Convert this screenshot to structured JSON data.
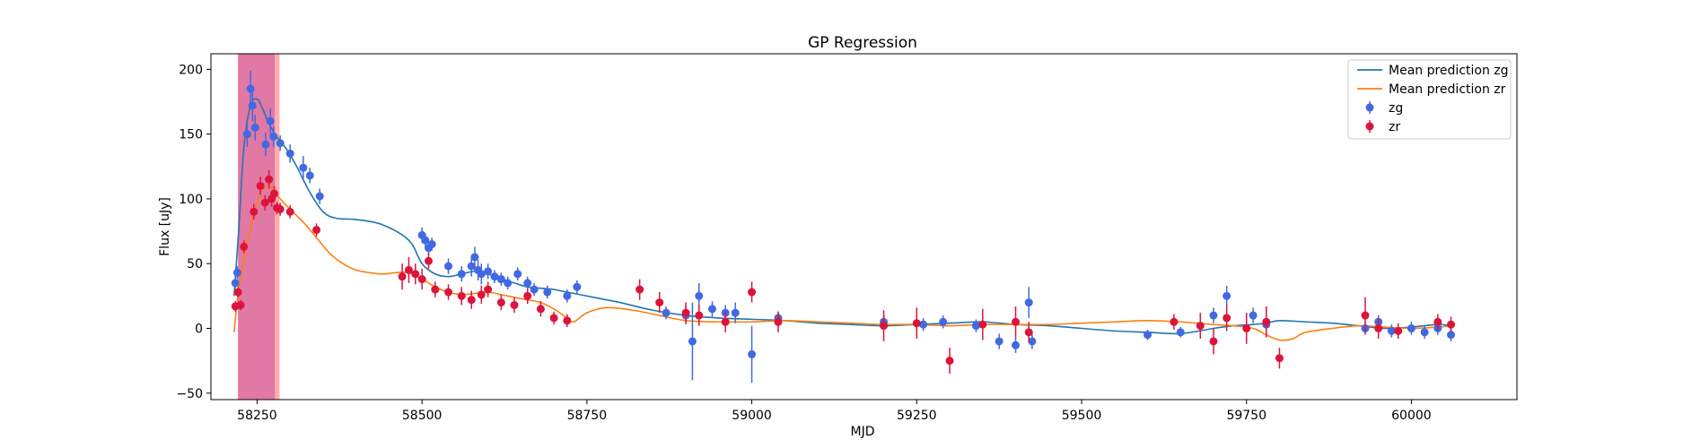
{
  "chart_data": {
    "type": "scatter",
    "title": "GP Regression",
    "xlabel": "MJD",
    "ylabel": "Flux [uJy]",
    "xlim": [
      58180,
      60160
    ],
    "ylim": [
      -55,
      212
    ],
    "xticks": [
      58250,
      58500,
      58750,
      59000,
      59250,
      59500,
      59750,
      60000
    ],
    "yticks": [
      -50,
      0,
      50,
      100,
      150,
      200
    ],
    "legend_position": "top-right",
    "shaded_regions": [
      {
        "x": [
          58221,
          58277
        ],
        "color": "#d63f7d",
        "opacity": 0.7
      },
      {
        "x": [
          58277,
          58284
        ],
        "color": "#ff8a8a",
        "opacity": 0.7
      }
    ],
    "series": [
      {
        "name": "Mean prediction zg",
        "kind": "line",
        "color": "#1f77b4",
        "x": [
          58215,
          58222,
          58230,
          58240,
          58250,
          58258,
          58268,
          58280,
          58295,
          58310,
          58330,
          58350,
          58370,
          58400,
          58440,
          58480,
          58500,
          58520,
          58540,
          58560,
          58580,
          58600,
          58620,
          58640,
          58660,
          58680,
          58700,
          58720,
          58740,
          58760,
          58780,
          58800,
          58850,
          58900,
          58950,
          59000,
          59050,
          59100,
          59150,
          59200,
          59250,
          59300,
          59350,
          59400,
          59450,
          59500,
          59550,
          59600,
          59650,
          59700,
          59730,
          59760,
          59780,
          59800,
          59840,
          59880,
          59920,
          59960,
          60000,
          60040,
          60060
        ],
        "y": [
          25,
          75,
          140,
          172,
          177,
          170,
          158,
          148,
          138,
          125,
          105,
          90,
          85,
          84,
          80,
          68,
          50,
          42,
          40,
          42,
          44,
          42,
          38,
          35,
          32,
          31,
          30,
          28,
          26,
          24,
          22,
          20,
          14,
          10,
          8,
          7,
          6,
          4,
          3,
          2,
          3,
          4,
          5,
          3,
          2,
          0,
          -2,
          -3,
          -4,
          0,
          2,
          3,
          4,
          6,
          5,
          4,
          2,
          0,
          1,
          3,
          2
        ]
      },
      {
        "name": "Mean prediction zr",
        "kind": "line",
        "color": "#ff7f0e",
        "x": [
          58215,
          58222,
          58232,
          58242,
          58252,
          58262,
          58272,
          58285,
          58300,
          58320,
          58340,
          58360,
          58380,
          58400,
          58420,
          58440,
          58460,
          58480,
          58500,
          58520,
          58540,
          58560,
          58580,
          58600,
          58620,
          58640,
          58660,
          58680,
          58700,
          58720,
          58730,
          58750,
          58780,
          58820,
          58860,
          58900,
          58950,
          59000,
          59050,
          59100,
          59150,
          59200,
          59250,
          59300,
          59350,
          59400,
          59450,
          59500,
          59550,
          59600,
          59650,
          59700,
          59730,
          59760,
          59780,
          59800,
          59820,
          59840,
          59880,
          59920,
          59960,
          60000,
          60040,
          60060
        ],
        "y": [
          -3,
          30,
          58,
          82,
          100,
          110,
          108,
          100,
          92,
          82,
          70,
          58,
          50,
          45,
          43,
          42,
          43,
          43,
          38,
          32,
          28,
          26,
          27,
          28,
          26,
          24,
          22,
          20,
          15,
          8,
          5,
          12,
          16,
          14,
          10,
          6,
          5,
          5,
          6,
          5,
          4,
          3,
          3,
          2,
          3,
          3,
          3,
          4,
          5,
          6,
          5,
          3,
          2,
          0,
          -5,
          -9,
          -8,
          -3,
          0,
          2,
          1,
          0,
          1,
          2
        ]
      },
      {
        "name": "zg",
        "kind": "errorbar",
        "color": "#4169e1",
        "x": [
          58217,
          58220,
          58235,
          58240,
          58243,
          58247,
          58263,
          58270,
          58275,
          58285,
          58300,
          58320,
          58330,
          58345,
          58500,
          58505,
          58510,
          58515,
          58540,
          58560,
          58575,
          58580,
          58585,
          58590,
          58600,
          58610,
          58620,
          58630,
          58645,
          58660,
          58670,
          58690,
          58720,
          58735,
          58870,
          58900,
          58910,
          58920,
          58940,
          58960,
          58975,
          59000,
          59040,
          59200,
          59260,
          59290,
          59340,
          59375,
          59400,
          59420,
          59425,
          59600,
          59650,
          59700,
          59720,
          59760,
          59780,
          59930,
          59950,
          59970,
          60000,
          60020,
          60040,
          60060
        ],
        "y": [
          35,
          43,
          150,
          185,
          172,
          155,
          142,
          160,
          148,
          143,
          135,
          124,
          118,
          102,
          72,
          68,
          62,
          65,
          48,
          42,
          48,
          55,
          45,
          42,
          44,
          40,
          38,
          35,
          42,
          35,
          30,
          28,
          25,
          32,
          12,
          10,
          -10,
          25,
          15,
          12,
          12,
          -20,
          8,
          5,
          3,
          5,
          2,
          -10,
          -13,
          20,
          -10,
          -5,
          -3,
          10,
          25,
          10,
          3,
          0,
          5,
          -2,
          0,
          -3,
          0,
          -5
        ],
        "err": [
          4,
          5,
          10,
          14,
          12,
          10,
          9,
          10,
          8,
          6,
          7,
          9,
          6,
          6,
          6,
          5,
          5,
          5,
          6,
          6,
          8,
          8,
          8,
          8,
          6,
          5,
          5,
          5,
          5,
          5,
          5,
          5,
          5,
          5,
          5,
          7,
          30,
          10,
          6,
          6,
          8,
          22,
          5,
          5,
          5,
          5,
          5,
          6,
          6,
          12,
          6,
          4,
          4,
          6,
          8,
          6,
          5,
          5,
          5,
          5,
          5,
          5,
          5,
          5
        ]
      },
      {
        "name": "zr",
        "kind": "errorbar",
        "color": "#dc143c",
        "x": [
          58217,
          58221,
          58225,
          58230,
          58245,
          58255,
          58262,
          58268,
          58272,
          58276,
          58280,
          58285,
          58300,
          58340,
          58470,
          58480,
          58490,
          58500,
          58510,
          58520,
          58540,
          58560,
          58575,
          58590,
          58600,
          58620,
          58640,
          58660,
          58680,
          58700,
          58720,
          58830,
          58860,
          58900,
          58920,
          58960,
          59000,
          59040,
          59200,
          59250,
          59300,
          59350,
          59400,
          59420,
          59640,
          59680,
          59700,
          59720,
          59750,
          59780,
          59800,
          59930,
          59950,
          59980,
          60040,
          60060
        ],
        "y": [
          17,
          28,
          18,
          63,
          90,
          110,
          97,
          115,
          100,
          104,
          93,
          92,
          90,
          76,
          40,
          45,
          42,
          38,
          52,
          30,
          28,
          25,
          22,
          26,
          30,
          20,
          18,
          25,
          15,
          8,
          6,
          30,
          20,
          12,
          10,
          5,
          28,
          5,
          2,
          4,
          -25,
          3,
          5,
          -3,
          5,
          2,
          -10,
          8,
          0,
          5,
          -23,
          10,
          0,
          -2,
          5,
          3
        ],
        "err": [
          4,
          4,
          4,
          5,
          6,
          7,
          6,
          7,
          6,
          6,
          5,
          5,
          5,
          5,
          10,
          10,
          8,
          8,
          6,
          6,
          6,
          7,
          7,
          7,
          6,
          6,
          6,
          6,
          6,
          5,
          5,
          8,
          8,
          8,
          8,
          8,
          8,
          8,
          12,
          12,
          10,
          12,
          12,
          8,
          6,
          10,
          10,
          10,
          12,
          12,
          8,
          14,
          8,
          6,
          6,
          6
        ]
      }
    ]
  }
}
